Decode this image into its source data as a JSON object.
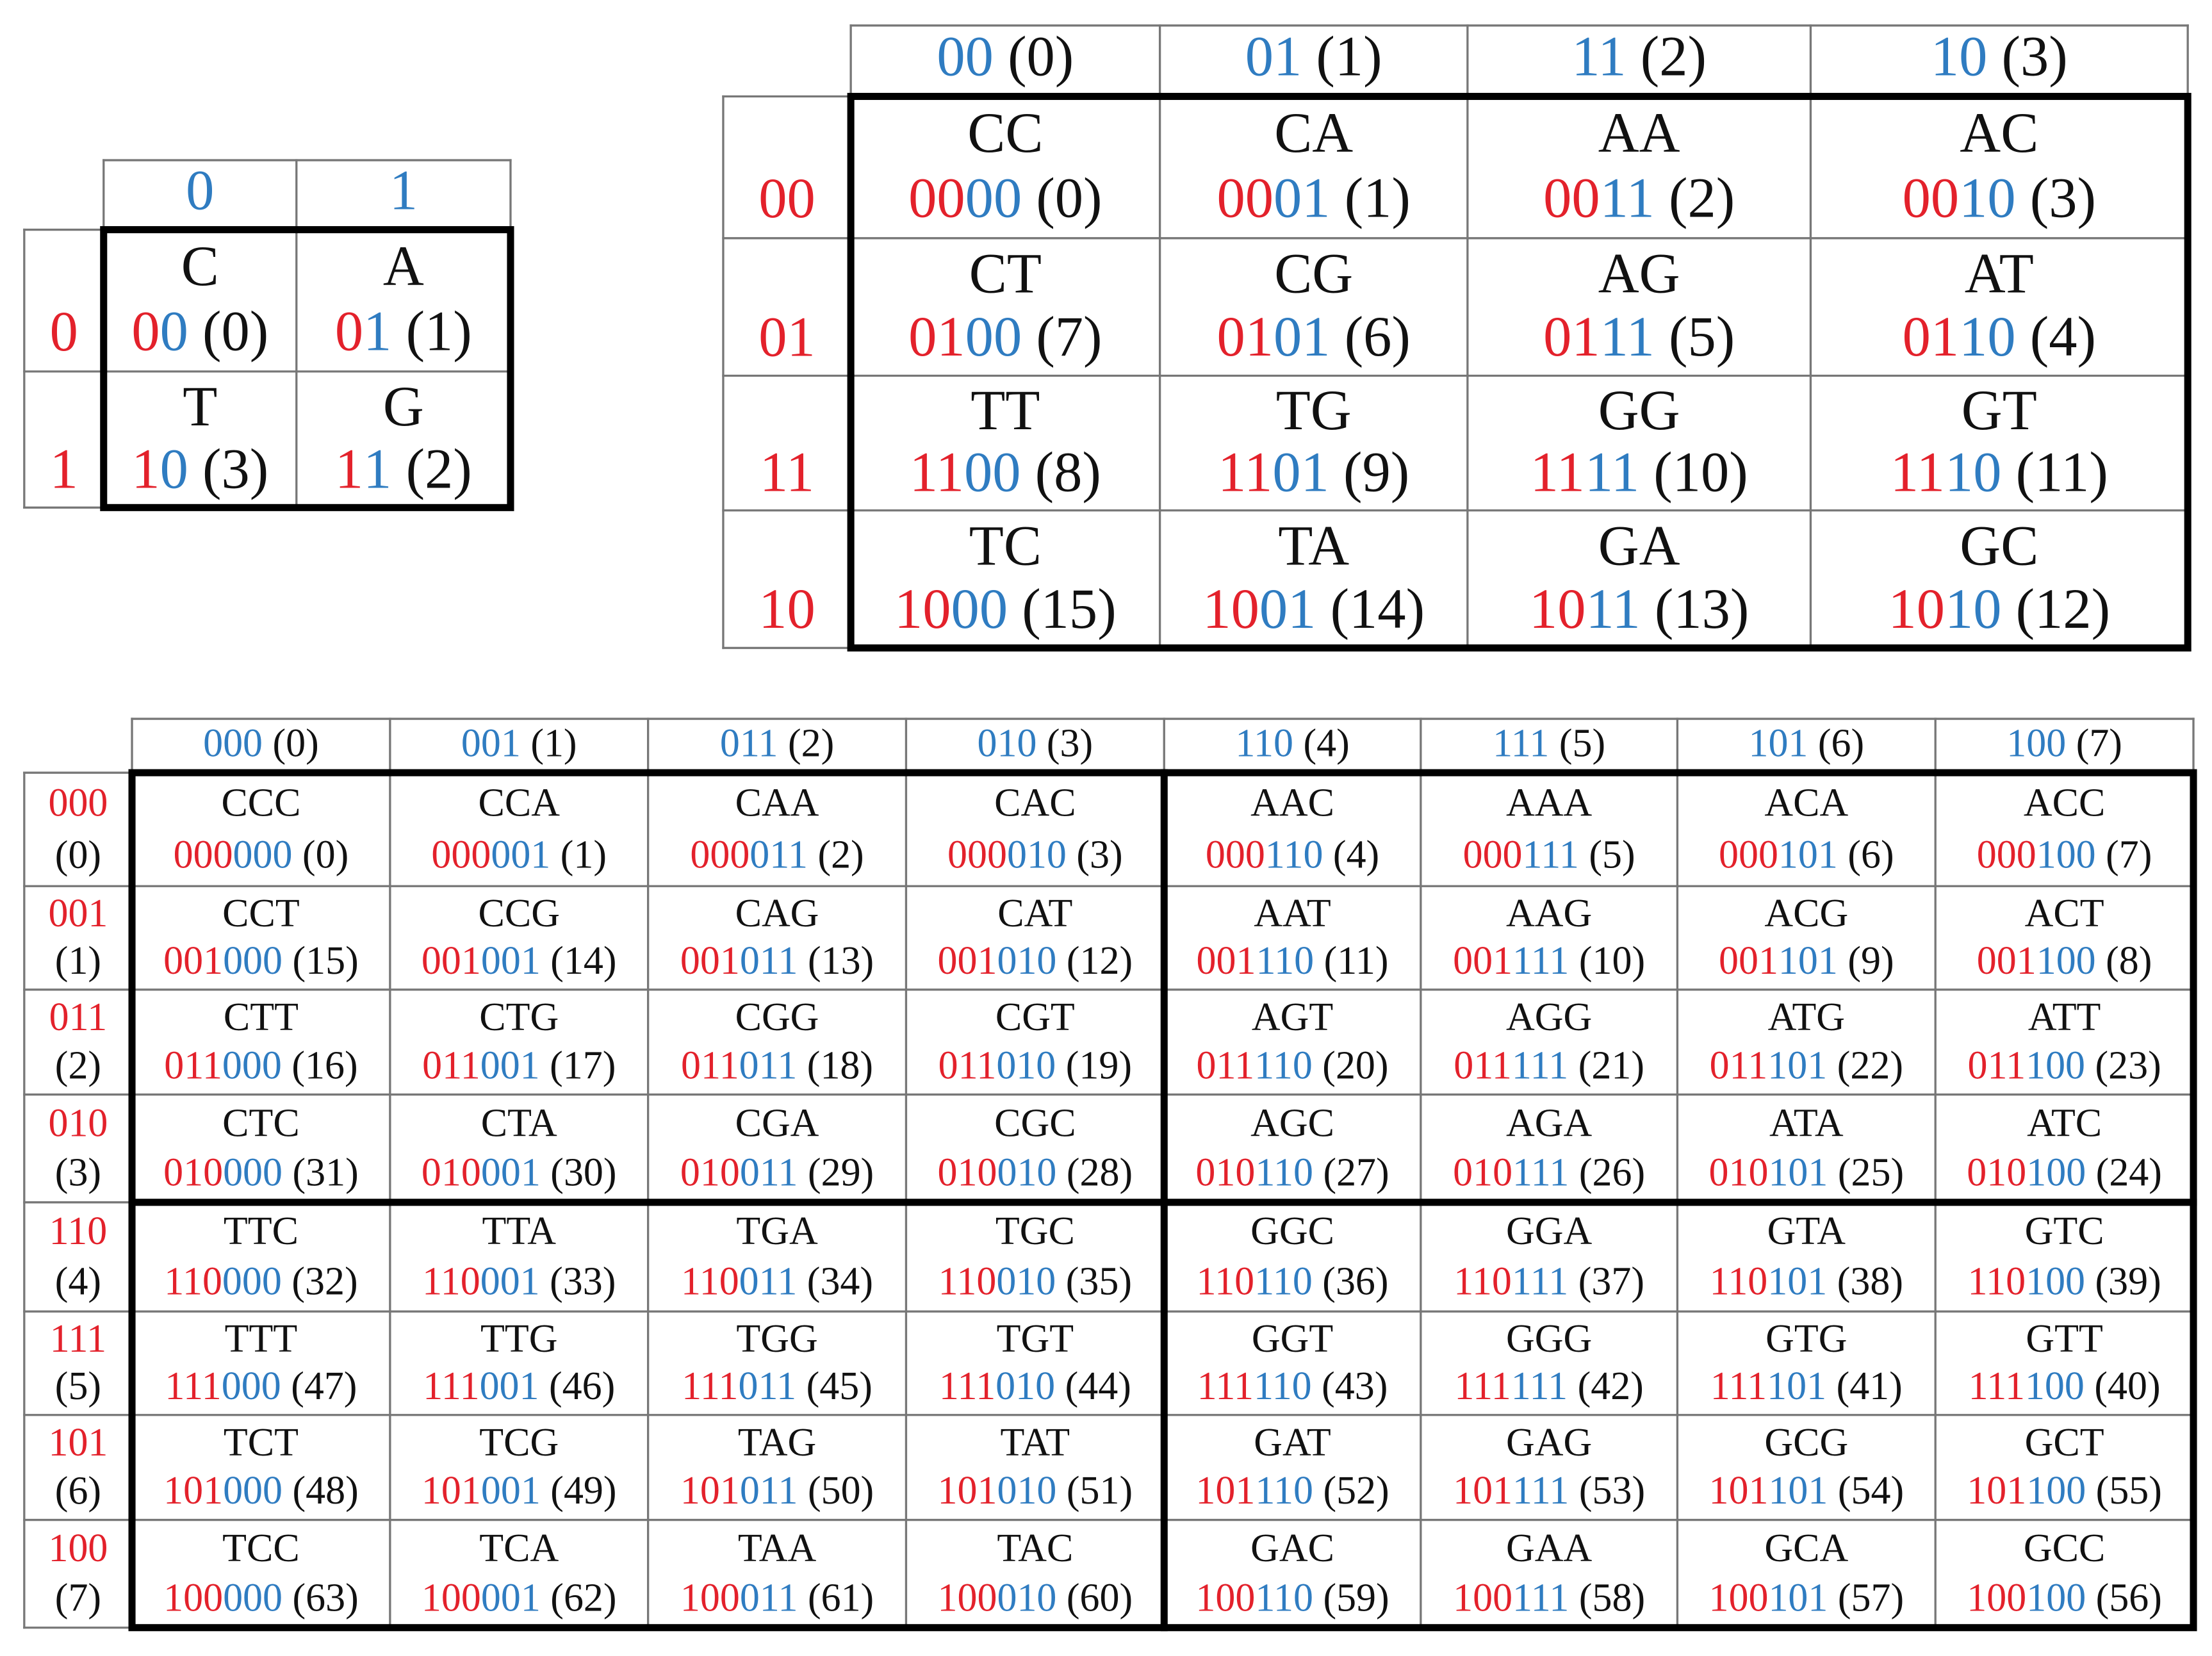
{
  "tables": [
    {
      "columns": [
        {
          "code": "0"
        },
        {
          "code": "1"
        }
      ],
      "rows": [
        {
          "code": "0"
        },
        {
          "code": "1"
        }
      ],
      "cells": [
        [
          [
            "C",
            "0",
            "0",
            "(0)"
          ],
          [
            "A",
            "0",
            "1",
            "(1)"
          ]
        ],
        [
          [
            "T",
            "1",
            "0",
            "(3)"
          ],
          [
            "G",
            "1",
            "1",
            "(2)"
          ]
        ]
      ]
    },
    {
      "columns": [
        {
          "code": "00",
          "index": "(0)"
        },
        {
          "code": "01",
          "index": "(1)"
        },
        {
          "code": "11",
          "index": "(2)"
        },
        {
          "code": "10",
          "index": "(3)"
        }
      ],
      "rows": [
        {
          "code": "00"
        },
        {
          "code": "01"
        },
        {
          "code": "11"
        },
        {
          "code": "10"
        }
      ],
      "cells": [
        [
          [
            "CC",
            "00",
            "00",
            "(0)"
          ],
          [
            "CA",
            "00",
            "01",
            "(1)"
          ],
          [
            "AA",
            "00",
            "11",
            "(2)"
          ],
          [
            "AC",
            "00",
            "10",
            "(3)"
          ]
        ],
        [
          [
            "CT",
            "01",
            "00",
            "(7)"
          ],
          [
            "CG",
            "01",
            "01",
            "(6)"
          ],
          [
            "AG",
            "01",
            "11",
            "(5)"
          ],
          [
            "AT",
            "01",
            "10",
            "(4)"
          ]
        ],
        [
          [
            "TT",
            "11",
            "00",
            "(8)"
          ],
          [
            "TG",
            "11",
            "01",
            "(9)"
          ],
          [
            "GG",
            "11",
            "11",
            "(10)"
          ],
          [
            "GT",
            "11",
            "10",
            "(11)"
          ]
        ],
        [
          [
            "TC",
            "10",
            "00",
            "(15)"
          ],
          [
            "TA",
            "10",
            "01",
            "(14)"
          ],
          [
            "GA",
            "10",
            "11",
            "(13)"
          ],
          [
            "GC",
            "10",
            "10",
            "(12)"
          ]
        ]
      ]
    },
    {
      "columns": [
        {
          "code": "000",
          "index": "(0)"
        },
        {
          "code": "001",
          "index": "(1)"
        },
        {
          "code": "011",
          "index": "(2)"
        },
        {
          "code": "010",
          "index": "(3)"
        },
        {
          "code": "110",
          "index": "(4)"
        },
        {
          "code": "111",
          "index": "(5)"
        },
        {
          "code": "101",
          "index": "(6)"
        },
        {
          "code": "100",
          "index": "(7)"
        }
      ],
      "rows": [
        {
          "code": "000",
          "index": "(0)"
        },
        {
          "code": "001",
          "index": "(1)"
        },
        {
          "code": "011",
          "index": "(2)"
        },
        {
          "code": "010",
          "index": "(3)"
        },
        {
          "code": "110",
          "index": "(4)"
        },
        {
          "code": "111",
          "index": "(5)"
        },
        {
          "code": "101",
          "index": "(6)"
        },
        {
          "code": "100",
          "index": "(7)"
        }
      ],
      "cells": [
        [
          [
            "CCC",
            "000",
            "000",
            "(0)"
          ],
          [
            "CCA",
            "000",
            "001",
            "(1)"
          ],
          [
            "CAA",
            "000",
            "011",
            "(2)"
          ],
          [
            "CAC",
            "000",
            "010",
            "(3)"
          ],
          [
            "AAC",
            "000",
            "110",
            "(4)"
          ],
          [
            "AAA",
            "000",
            "111",
            "(5)"
          ],
          [
            "ACA",
            "000",
            "101",
            "(6)"
          ],
          [
            "ACC",
            "000",
            "100",
            "(7)"
          ]
        ],
        [
          [
            "CCT",
            "001",
            "000",
            "(15)"
          ],
          [
            "CCG",
            "001",
            "001",
            "(14)"
          ],
          [
            "CAG",
            "001",
            "011",
            "(13)"
          ],
          [
            "CAT",
            "001",
            "010",
            "(12)"
          ],
          [
            "AAT",
            "001",
            "110",
            "(11)"
          ],
          [
            "AAG",
            "001",
            "111",
            "(10)"
          ],
          [
            "ACG",
            "001",
            "101",
            "(9)"
          ],
          [
            "ACT",
            "001",
            "100",
            "(8)"
          ]
        ],
        [
          [
            "CTT",
            "011",
            "000",
            "(16)"
          ],
          [
            "CTG",
            "011",
            "001",
            "(17)"
          ],
          [
            "CGG",
            "011",
            "011",
            "(18)"
          ],
          [
            "CGT",
            "011",
            "010",
            "(19)"
          ],
          [
            "AGT",
            "011",
            "110",
            "(20)"
          ],
          [
            "AGG",
            "011",
            "111",
            "(21)"
          ],
          [
            "ATG",
            "011",
            "101",
            "(22)"
          ],
          [
            "ATT",
            "011",
            "100",
            "(23)"
          ]
        ],
        [
          [
            "CTC",
            "010",
            "000",
            "(31)"
          ],
          [
            "CTA",
            "010",
            "001",
            "(30)"
          ],
          [
            "CGA",
            "010",
            "011",
            "(29)"
          ],
          [
            "CGC",
            "010",
            "010",
            "(28)"
          ],
          [
            "AGC",
            "010",
            "110",
            "(27)"
          ],
          [
            "AGA",
            "010",
            "111",
            "(26)"
          ],
          [
            "ATA",
            "010",
            "101",
            "(25)"
          ],
          [
            "ATC",
            "010",
            "100",
            "(24)"
          ]
        ],
        [
          [
            "TTC",
            "110",
            "000",
            "(32)"
          ],
          [
            "TTA",
            "110",
            "001",
            "(33)"
          ],
          [
            "TGA",
            "110",
            "011",
            "(34)"
          ],
          [
            "TGC",
            "110",
            "010",
            "(35)"
          ],
          [
            "GGC",
            "110",
            "110",
            "(36)"
          ],
          [
            "GGA",
            "110",
            "111",
            "(37)"
          ],
          [
            "GTA",
            "110",
            "101",
            "(38)"
          ],
          [
            "GTC",
            "110",
            "100",
            "(39)"
          ]
        ],
        [
          [
            "TTT",
            "111",
            "000",
            "(47)"
          ],
          [
            "TTG",
            "111",
            "001",
            "(46)"
          ],
          [
            "TGG",
            "111",
            "011",
            "(45)"
          ],
          [
            "TGT",
            "111",
            "010",
            "(44)"
          ],
          [
            "GGT",
            "111",
            "110",
            "(43)"
          ],
          [
            "GGG",
            "111",
            "111",
            "(42)"
          ],
          [
            "GTG",
            "111",
            "101",
            "(41)"
          ],
          [
            "GTT",
            "111",
            "100",
            "(40)"
          ]
        ],
        [
          [
            "TCT",
            "101",
            "000",
            "(48)"
          ],
          [
            "TCG",
            "101",
            "001",
            "(49)"
          ],
          [
            "TAG",
            "101",
            "011",
            "(50)"
          ],
          [
            "TAT",
            "101",
            "010",
            "(51)"
          ],
          [
            "GAT",
            "101",
            "110",
            "(52)"
          ],
          [
            "GAG",
            "101",
            "111",
            "(53)"
          ],
          [
            "GCG",
            "101",
            "101",
            "(54)"
          ],
          [
            "GCT",
            "101",
            "100",
            "(55)"
          ]
        ],
        [
          [
            "TCC",
            "100",
            "000",
            "(63)"
          ],
          [
            "TCA",
            "100",
            "001",
            "(62)"
          ],
          [
            "TAA",
            "100",
            "011",
            "(61)"
          ],
          [
            "TAC",
            "100",
            "010",
            "(60)"
          ],
          [
            "GAC",
            "100",
            "110",
            "(59)"
          ],
          [
            "GAA",
            "100",
            "111",
            "(58)"
          ],
          [
            "GCA",
            "100",
            "101",
            "(57)"
          ],
          [
            "GCC",
            "100",
            "100",
            "(56)"
          ]
        ]
      ]
    }
  ]
}
